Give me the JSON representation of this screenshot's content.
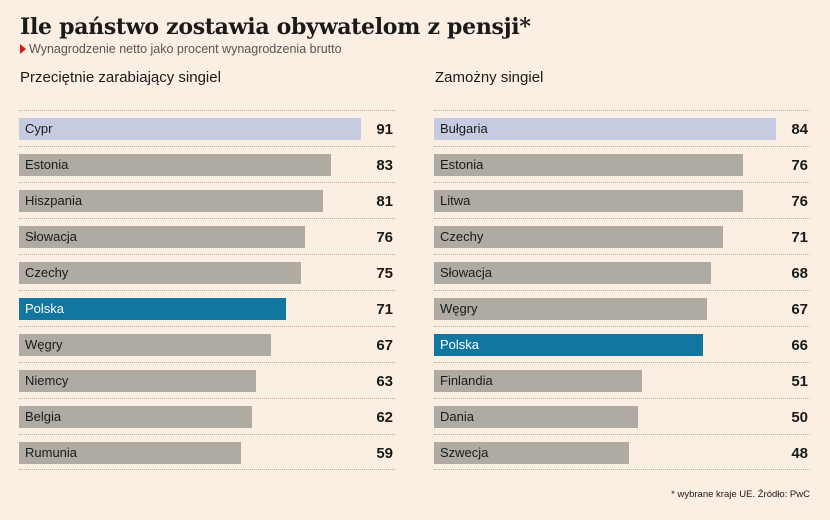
{
  "header": {
    "title": "Ile państwo zostawia obywatelom z pensji*",
    "subtitle": "Wynagrodzenie netto jako procent wynagrodzenia brutto"
  },
  "footer": {
    "source": "* wybrane kraje UE. Źródło: PwC"
  },
  "colors": {
    "background": "#fbeee2",
    "bar_default": "#afaba3",
    "bar_top": "#c5cbe0",
    "bar_poland": "#1176a0",
    "marker": "#d21c1c"
  },
  "chart_data": [
    {
      "type": "bar",
      "orientation": "horizontal",
      "title": "Przeciętnie zarabiający singiel",
      "categories": [
        "Cypr",
        "Estonia",
        "Hiszpania",
        "Słowacja",
        "Czechy",
        "Polska",
        "Węgry",
        "Niemcy",
        "Belgia",
        "Rumunia"
      ],
      "values": [
        91,
        83,
        81,
        76,
        75,
        71,
        67,
        63,
        62,
        59
      ],
      "xlim": [
        0,
        91
      ],
      "highlight": {
        "Cypr": "bar_top",
        "Polska": "bar_poland"
      }
    },
    {
      "type": "bar",
      "orientation": "horizontal",
      "title": "Zamożny singiel",
      "categories": [
        "Bułgaria",
        "Estonia",
        "Litwa",
        "Czechy",
        "Słowacja",
        "Węgry",
        "Polska",
        "Finlandia",
        "Dania",
        "Szwecja"
      ],
      "values": [
        84,
        76,
        76,
        71,
        68,
        67,
        66,
        51,
        50,
        48
      ],
      "xlim": [
        0,
        84
      ],
      "highlight": {
        "Bułgaria": "bar_top",
        "Polska": "bar_poland"
      }
    }
  ]
}
